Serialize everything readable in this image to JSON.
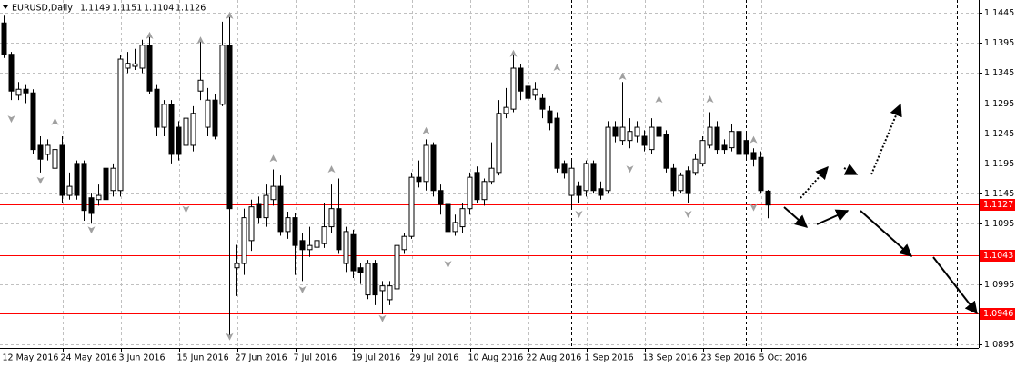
{
  "chart_data": {
    "type": "candlestick",
    "title": "EURUSD,Daily",
    "header_values": [
      1.1149,
      1.1151,
      1.1104,
      1.1126
    ],
    "ylim": [
      1.0889,
      1.1466
    ],
    "yticks": [
      1.1445,
      1.1395,
      1.1345,
      1.1295,
      1.1245,
      1.1195,
      1.1145,
      1.1095,
      1.0995,
      1.0895
    ],
    "grid": true,
    "bull_color": "#ffffff",
    "bear_color": "#000000",
    "categories": [
      "12 May 2016",
      null,
      null,
      null,
      null,
      null,
      null,
      null,
      "24 May 2016",
      null,
      null,
      null,
      null,
      null,
      null,
      null,
      "3 Jun 2016",
      null,
      null,
      null,
      null,
      null,
      null,
      null,
      "15 Jun 2016",
      null,
      null,
      null,
      null,
      null,
      null,
      null,
      "27 Jun 2016",
      null,
      null,
      null,
      null,
      null,
      null,
      null,
      "7 Jul 2016",
      null,
      null,
      null,
      null,
      null,
      null,
      null,
      "19 Jul 2016",
      null,
      null,
      null,
      null,
      null,
      null,
      null,
      "29 Jul 2016",
      null,
      null,
      null,
      null,
      null,
      null,
      null,
      "10 Aug 2016",
      null,
      null,
      null,
      null,
      null,
      null,
      null,
      "22 Aug 2016",
      null,
      null,
      null,
      null,
      null,
      null,
      null,
      "1 Sep 2016",
      null,
      null,
      null,
      null,
      null,
      null,
      null,
      "13 Sep 2016",
      null,
      null,
      null,
      null,
      null,
      null,
      null,
      "23 Sep 2016",
      null,
      null,
      null,
      null,
      null,
      null,
      null,
      "5 Oct 2016",
      null
    ],
    "open": [
      1.1428,
      1.1376,
      1.1308,
      1.1318,
      1.1312,
      1.1225,
      1.121,
      1.1187,
      1.1225,
      1.1142,
      1.1195,
      1.1195,
      1.1138,
      1.1135,
      1.1187,
      1.115,
      1.115,
      1.1353,
      1.1356,
      1.1353,
      1.1391,
      1.1318,
      1.1255,
      1.1293,
      1.1255,
      1.1225,
      1.1225,
      1.1315,
      1.1255,
      1.13,
      1.1293,
      1.1391,
      1.1022,
      1.1029,
      1.1067,
      1.1127,
      1.1105,
      1.1135,
      1.1157,
      1.1082,
      1.1105,
      1.1067,
      1.1052,
      1.1056,
      1.1062,
      1.109,
      1.112,
      1.1029,
      1.1077,
      1.1022,
      1.0977,
      1.1029,
      1.0984,
      1.0969,
      1.0987,
      1.1052,
      1.1074,
      1.1172,
      1.1165,
      1.1225,
      1.115,
      1.1127,
      1.1082,
      1.109,
      1.112,
      1.118,
      1.1135,
      1.1165,
      1.118,
      1.1278,
      1.1285,
      1.1353,
      1.1323,
      1.1308,
      1.1303,
      1.1282,
      1.127,
      1.1195,
      1.1142,
      1.1157,
      1.115,
      1.1195,
      1.1153,
      1.115,
      1.1255,
      1.1233,
      1.1233,
      1.124,
      1.124,
      1.1218,
      1.1255,
      1.1243,
      1.1187,
      1.115,
      1.1183,
      1.118,
      1.1195,
      1.1225,
      1.1255,
      1.1225,
      1.1221,
      1.1248,
      1.1233,
      1.1213,
      1.1205,
      1.1149
    ],
    "high": [
      1.144,
      1.138,
      1.133,
      1.1325,
      1.1318,
      1.124,
      1.1235,
      1.126,
      1.124,
      1.118,
      1.12,
      1.12,
      1.1145,
      1.116,
      1.12,
      1.1195,
      1.1375,
      1.138,
      1.1385,
      1.14,
      1.1405,
      1.1325,
      1.13,
      1.13,
      1.1265,
      1.1285,
      1.129,
      1.14,
      1.132,
      1.131,
      1.143,
      1.144,
      1.106,
      1.112,
      1.1135,
      1.114,
      1.116,
      1.1185,
      1.1175,
      1.1115,
      1.1112,
      1.108,
      1.109,
      1.1095,
      1.113,
      1.116,
      1.117,
      1.109,
      1.1085,
      1.103,
      1.1035,
      1.1035,
      1.1,
      1.1,
      1.1065,
      1.108,
      1.118,
      1.12,
      1.1235,
      1.123,
      1.116,
      1.1135,
      1.111,
      1.113,
      1.118,
      1.119,
      1.117,
      1.123,
      1.13,
      1.132,
      1.1375,
      1.136,
      1.133,
      1.133,
      1.131,
      1.129,
      1.128,
      1.12,
      1.12,
      1.1165,
      1.12,
      1.12,
      1.1165,
      1.1265,
      1.1265,
      1.133,
      1.127,
      1.1265,
      1.125,
      1.127,
      1.1265,
      1.125,
      1.1195,
      1.118,
      1.119,
      1.121,
      1.124,
      1.128,
      1.1265,
      1.1235,
      1.126,
      1.1255,
      1.1245,
      1.122,
      1.1215,
      1.1151
    ],
    "low": [
      1.137,
      1.13,
      1.13,
      1.1295,
      1.121,
      1.118,
      1.12,
      1.118,
      1.113,
      1.1135,
      1.1135,
      1.11,
      1.1095,
      1.1125,
      1.1128,
      1.114,
      1.114,
      1.1345,
      1.135,
      1.1345,
      1.131,
      1.124,
      1.124,
      1.1195,
      1.12,
      1.112,
      1.1215,
      1.13,
      1.124,
      1.1235,
      1.129,
      1.0909,
      1.0975,
      1.101,
      1.105,
      1.1095,
      1.109,
      1.1125,
      1.1075,
      1.107,
      1.101,
      1.1,
      1.104,
      1.1045,
      1.1055,
      1.108,
      1.1045,
      1.1015,
      1.1005,
      1.0995,
      1.097,
      1.096,
      1.0945,
      1.096,
      1.096,
      1.1045,
      1.107,
      1.1155,
      1.115,
      1.114,
      1.111,
      1.106,
      1.1075,
      1.108,
      1.111,
      1.113,
      1.1125,
      1.116,
      1.1175,
      1.127,
      1.128,
      1.13,
      1.129,
      1.13,
      1.127,
      1.125,
      1.118,
      1.117,
      1.112,
      1.113,
      1.114,
      1.1145,
      1.1135,
      1.1145,
      1.123,
      1.1225,
      1.122,
      1.123,
      1.1215,
      1.121,
      1.123,
      1.118,
      1.114,
      1.1145,
      1.113,
      1.1175,
      1.119,
      1.122,
      1.121,
      1.121,
      1.1215,
      1.1195,
      1.12,
      1.119,
      1.1145,
      1.1104
    ],
    "close": [
      1.1376,
      1.1315,
      1.1318,
      1.1312,
      1.1218,
      1.1202,
      1.1225,
      1.1218,
      1.1142,
      1.1157,
      1.1142,
      1.1117,
      1.1112,
      1.1142,
      1.1135,
      1.1187,
      1.1368,
      1.1361,
      1.136,
      1.1391,
      1.1315,
      1.1255,
      1.1293,
      1.121,
      1.121,
      1.127,
      1.1278,
      1.1333,
      1.13,
      1.124,
      1.1391,
      1.112,
      1.1029,
      1.1105,
      1.1123,
      1.1105,
      1.1142,
      1.1157,
      1.1082,
      1.1105,
      1.1059,
      1.1052,
      1.1059,
      1.1067,
      1.109,
      1.112,
      1.1052,
      1.1082,
      1.1017,
      1.1014,
      1.1029,
      1.0977,
      1.0992,
      1.0992,
      1.1059,
      1.1074,
      1.1172,
      1.1165,
      1.1225,
      1.115,
      1.1127,
      1.1082,
      1.1097,
      1.112,
      1.1172,
      1.1135,
      1.1165,
      1.1187,
      1.1278,
      1.1288,
      1.1353,
      1.1315,
      1.1303,
      1.1318,
      1.1285,
      1.1263,
      1.1187,
      1.118,
      1.1187,
      1.1142,
      1.1195,
      1.115,
      1.1142,
      1.1255,
      1.124,
      1.1255,
      1.1248,
      1.1255,
      1.1225,
      1.1255,
      1.124,
      1.1187,
      1.115,
      1.1175,
      1.1145,
      1.1202,
      1.1233,
      1.1255,
      1.1218,
      1.1218,
      1.1248,
      1.121,
      1.121,
      1.1202,
      1.115,
      1.1126
    ],
    "fractals_up": [
      null,
      null,
      null,
      null,
      null,
      null,
      null,
      1.1263,
      null,
      null,
      null,
      null,
      null,
      null,
      null,
      null,
      null,
      null,
      null,
      null,
      1.1406,
      null,
      null,
      null,
      null,
      null,
      null,
      1.1398,
      null,
      null,
      null,
      1.1439,
      null,
      null,
      null,
      null,
      null,
      1.1202,
      null,
      null,
      null,
      null,
      null,
      null,
      null,
      1.1184,
      null,
      null,
      null,
      null,
      null,
      null,
      null,
      null,
      null,
      null,
      null,
      null,
      1.1248,
      null,
      null,
      null,
      null,
      null,
      null,
      null,
      null,
      null,
      null,
      null,
      1.1376,
      null,
      null,
      null,
      null,
      null,
      1.1353,
      null,
      null,
      null,
      null,
      null,
      null,
      null,
      null,
      1.1338,
      null,
      null,
      null,
      null,
      1.13,
      null,
      null,
      null,
      null,
      null,
      null,
      1.13,
      null,
      null,
      null,
      null,
      null,
      1.1233,
      null,
      null
    ],
    "fractals_down": [
      null,
      1.127,
      null,
      null,
      null,
      1.1168,
      null,
      null,
      null,
      null,
      null,
      null,
      1.1086,
      null,
      null,
      null,
      null,
      null,
      null,
      null,
      null,
      null,
      null,
      null,
      null,
      1.112,
      null,
      null,
      null,
      null,
      null,
      1.0909,
      null,
      null,
      null,
      null,
      null,
      null,
      null,
      null,
      null,
      1.0987,
      null,
      null,
      null,
      null,
      null,
      null,
      null,
      null,
      null,
      null,
      1.0939,
      null,
      null,
      null,
      null,
      null,
      null,
      null,
      null,
      1.1029,
      null,
      null,
      null,
      null,
      null,
      null,
      null,
      null,
      null,
      null,
      null,
      null,
      null,
      null,
      null,
      null,
      null,
      1.1112,
      null,
      null,
      null,
      null,
      null,
      null,
      1.1187,
      null,
      null,
      null,
      null,
      null,
      null,
      null,
      1.1112,
      null,
      null,
      null,
      null,
      null,
      null,
      null,
      null,
      1.1123,
      null,
      null
    ],
    "levels": [
      {
        "value": 1.1127,
        "color": "#ff0000"
      },
      {
        "value": 1.1043,
        "color": "#ff0000"
      },
      {
        "value": 1.0946,
        "color": "#ff0000"
      }
    ]
  }
}
